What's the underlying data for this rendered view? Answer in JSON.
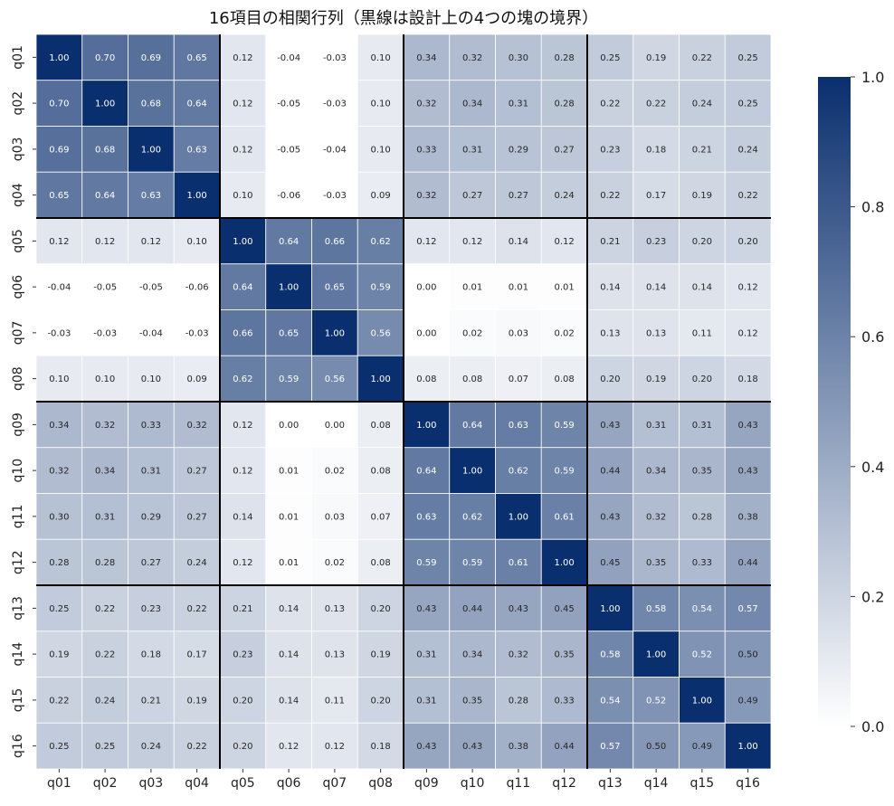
{
  "chart_data": {
    "type": "heatmap",
    "title": "16項目の相関行列（黒線は設計上の4つの塊の境界）",
    "rows": [
      "q01",
      "q02",
      "q03",
      "q04",
      "q05",
      "q06",
      "q07",
      "q08",
      "q09",
      "q10",
      "q11",
      "q12",
      "q13",
      "q14",
      "q15",
      "q16"
    ],
    "columns": [
      "q01",
      "q02",
      "q03",
      "q04",
      "q05",
      "q06",
      "q07",
      "q08",
      "q09",
      "q10",
      "q11",
      "q12",
      "q13",
      "q14",
      "q15",
      "q16"
    ],
    "values": [
      [
        1.0,
        0.7,
        0.69,
        0.65,
        0.12,
        -0.04,
        -0.03,
        0.1,
        0.34,
        0.32,
        0.3,
        0.28,
        0.25,
        0.19,
        0.22,
        0.25
      ],
      [
        0.7,
        1.0,
        0.68,
        0.64,
        0.12,
        -0.05,
        -0.03,
        0.1,
        0.32,
        0.34,
        0.31,
        0.28,
        0.22,
        0.22,
        0.24,
        0.25
      ],
      [
        0.69,
        0.68,
        1.0,
        0.63,
        0.12,
        -0.05,
        -0.04,
        0.1,
        0.33,
        0.31,
        0.29,
        0.27,
        0.23,
        0.18,
        0.21,
        0.24
      ],
      [
        0.65,
        0.64,
        0.63,
        1.0,
        0.1,
        -0.06,
        -0.03,
        0.09,
        0.32,
        0.27,
        0.27,
        0.24,
        0.22,
        0.17,
        0.19,
        0.22
      ],
      [
        0.12,
        0.12,
        0.12,
        0.1,
        1.0,
        0.64,
        0.66,
        0.62,
        0.12,
        0.12,
        0.14,
        0.12,
        0.21,
        0.23,
        0.2,
        0.2
      ],
      [
        -0.04,
        -0.05,
        -0.05,
        -0.06,
        0.64,
        1.0,
        0.65,
        0.59,
        0.0,
        0.01,
        0.01,
        0.01,
        0.14,
        0.14,
        0.14,
        0.12
      ],
      [
        -0.03,
        -0.03,
        -0.04,
        -0.03,
        0.66,
        0.65,
        1.0,
        0.56,
        0.0,
        0.02,
        0.03,
        0.02,
        0.13,
        0.13,
        0.11,
        0.12
      ],
      [
        0.1,
        0.1,
        0.1,
        0.09,
        0.62,
        0.59,
        0.56,
        1.0,
        0.08,
        0.08,
        0.07,
        0.08,
        0.2,
        0.19,
        0.2,
        0.18
      ],
      [
        0.34,
        0.32,
        0.33,
        0.32,
        0.12,
        0.0,
        0.0,
        0.08,
        1.0,
        0.64,
        0.63,
        0.59,
        0.43,
        0.31,
        0.31,
        0.43
      ],
      [
        0.32,
        0.34,
        0.31,
        0.27,
        0.12,
        0.01,
        0.02,
        0.08,
        0.64,
        1.0,
        0.62,
        0.59,
        0.44,
        0.34,
        0.35,
        0.43
      ],
      [
        0.3,
        0.31,
        0.29,
        0.27,
        0.14,
        0.01,
        0.03,
        0.07,
        0.63,
        0.62,
        1.0,
        0.61,
        0.43,
        0.32,
        0.28,
        0.38
      ],
      [
        0.28,
        0.28,
        0.27,
        0.24,
        0.12,
        0.01,
        0.02,
        0.08,
        0.59,
        0.59,
        0.61,
        1.0,
        0.45,
        0.35,
        0.33,
        0.44
      ],
      [
        0.25,
        0.22,
        0.23,
        0.22,
        0.21,
        0.14,
        0.13,
        0.2,
        0.43,
        0.44,
        0.43,
        0.45,
        1.0,
        0.58,
        0.54,
        0.57
      ],
      [
        0.19,
        0.22,
        0.18,
        0.17,
        0.23,
        0.14,
        0.13,
        0.19,
        0.31,
        0.34,
        0.32,
        0.35,
        0.58,
        1.0,
        0.52,
        0.5
      ],
      [
        0.22,
        0.24,
        0.21,
        0.19,
        0.2,
        0.14,
        0.11,
        0.2,
        0.31,
        0.35,
        0.28,
        0.33,
        0.54,
        0.52,
        1.0,
        0.49
      ],
      [
        0.25,
        0.25,
        0.24,
        0.22,
        0.2,
        0.12,
        0.12,
        0.18,
        0.43,
        0.43,
        0.38,
        0.44,
        0.57,
        0.5,
        0.49,
        1.0
      ]
    ],
    "color_scale": {
      "min": 0.0,
      "max": 1.0,
      "low_color": "#ffffff",
      "high_color": "#0a2f6e"
    },
    "colorbar_ticks": [
      0.0,
      0.2,
      0.4,
      0.6,
      0.8,
      1.0
    ],
    "block_boundaries_after_index": [
      3,
      7,
      11
    ],
    "annotation_format": "2 decimals",
    "legend_placement": "right"
  }
}
